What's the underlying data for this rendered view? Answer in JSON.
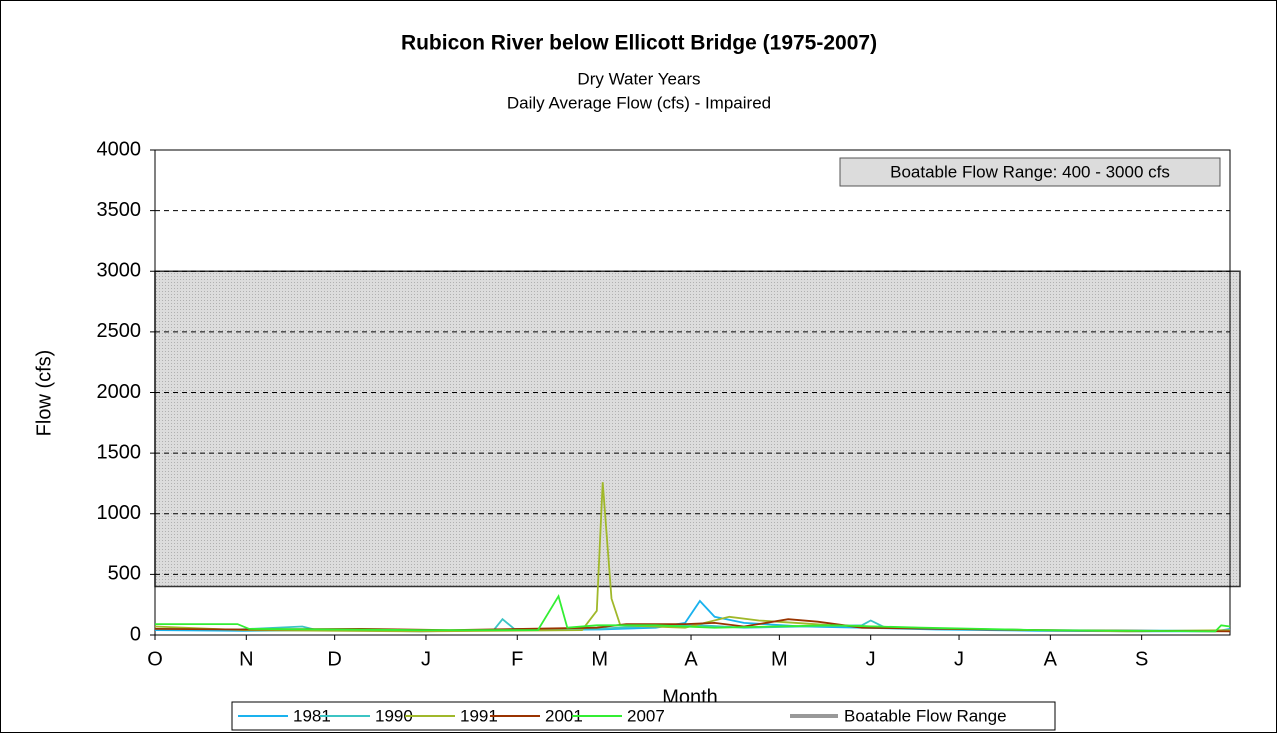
{
  "chart_data": {
    "type": "line",
    "title": "Rubicon River below Ellicott Bridge (1975-2007)",
    "subtitle": [
      "Dry Water Years",
      "Daily Average Flow (cfs) - Impaired"
    ],
    "xlabel": "Month",
    "ylabel": "Flow (cfs)",
    "xlim": [
      0,
      365
    ],
    "xticks": [
      {
        "value": 0,
        "label": "O"
      },
      {
        "value": 31,
        "label": "N"
      },
      {
        "value": 61,
        "label": "D"
      },
      {
        "value": 92,
        "label": "J"
      },
      {
        "value": 123,
        "label": "F"
      },
      {
        "value": 151,
        "label": "M"
      },
      {
        "value": 182,
        "label": "A"
      },
      {
        "value": 212,
        "label": "M"
      },
      {
        "value": 243,
        "label": "J"
      },
      {
        "value": 273,
        "label": "J"
      },
      {
        "value": 304,
        "label": "A"
      },
      {
        "value": 335,
        "label": "S"
      }
    ],
    "ylim": [
      0,
      4000
    ],
    "yticks": [
      0,
      500,
      1000,
      1500,
      2000,
      2500,
      3000,
      3500,
      4000
    ],
    "grid": true,
    "annotation": "Boatable Flow Range: 400 - 3000 cfs",
    "band": {
      "name": "Boatable Flow Range",
      "range": [
        400,
        3000
      ],
      "color": "#999999"
    },
    "legend": "bottom",
    "series": [
      {
        "name": "1981",
        "color": "#1ab2ee",
        "x": [
          0,
          30,
          60,
          90,
          120,
          151,
          170,
          180,
          185,
          190,
          200,
          220,
          240,
          265,
          300,
          335,
          360,
          365
        ],
        "values": [
          40,
          35,
          40,
          30,
          40,
          45,
          60,
          100,
          280,
          150,
          100,
          70,
          60,
          45,
          35,
          30,
          30,
          50
        ]
      },
      {
        "name": "1990",
        "color": "#3cc4c4",
        "x": [
          0,
          28,
          50,
          55,
          90,
          115,
          118,
          122,
          150,
          165,
          185,
          200,
          240,
          243,
          248,
          300,
          364
        ],
        "values": [
          50,
          45,
          70,
          40,
          35,
          40,
          130,
          50,
          50,
          70,
          80,
          60,
          80,
          120,
          60,
          40,
          35
        ]
      },
      {
        "name": "1991",
        "color": "#a0b82a",
        "x": [
          0,
          30,
          90,
          145,
          150,
          152,
          155,
          158,
          180,
          195,
          205,
          230,
          270,
          330,
          365
        ],
        "values": [
          70,
          40,
          30,
          40,
          200,
          1260,
          300,
          80,
          60,
          150,
          120,
          80,
          50,
          30,
          40
        ]
      },
      {
        "name": "2001",
        "color": "#993300",
        "x": [
          0,
          30,
          70,
          100,
          150,
          160,
          180,
          190,
          200,
          215,
          225,
          240,
          300,
          365
        ],
        "values": [
          50,
          45,
          50,
          40,
          60,
          90,
          90,
          100,
          70,
          130,
          110,
          60,
          40,
          30
        ]
      },
      {
        "name": "2007",
        "color": "#33ee33",
        "x": [
          0,
          28,
          32,
          90,
          130,
          137,
          140,
          150,
          170,
          190,
          230,
          260,
          300,
          360,
          362,
          365
        ],
        "values": [
          90,
          90,
          50,
          40,
          40,
          320,
          60,
          80,
          80,
          60,
          80,
          60,
          40,
          30,
          80,
          70
        ]
      }
    ]
  }
}
